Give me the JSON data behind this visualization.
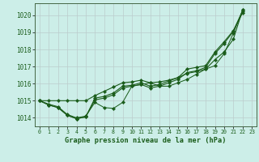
{
  "title": "Graphe pression niveau de la mer (hPa)",
  "background_color": "#cceee8",
  "grid_color": "#bbcccc",
  "line_color": "#1a5c1a",
  "xlim": [
    -0.5,
    23.5
  ],
  "ylim": [
    1013.5,
    1020.7
  ],
  "yticks": [
    1014,
    1015,
    1016,
    1017,
    1018,
    1019,
    1020
  ],
  "xticks": [
    0,
    1,
    2,
    3,
    4,
    5,
    6,
    7,
    8,
    9,
    10,
    11,
    12,
    13,
    14,
    15,
    16,
    17,
    18,
    19,
    20,
    21,
    22,
    23
  ],
  "series": [
    [
      1015.0,
      1014.8,
      1014.65,
      1014.2,
      1014.0,
      1014.1,
      1014.9,
      1014.6,
      1014.55,
      1014.9,
      1015.85,
      1015.95,
      1016.05,
      1015.85,
      1015.85,
      1016.05,
      1016.25,
      1016.55,
      1016.85,
      1017.05,
      1017.75,
      1018.95,
      1020.3
    ],
    [
      1015.0,
      1014.75,
      1014.6,
      1014.15,
      1013.95,
      1014.05,
      1015.15,
      1015.25,
      1015.45,
      1015.85,
      1015.9,
      1016.05,
      1015.85,
      1015.95,
      1016.15,
      1016.35,
      1016.85,
      1016.95,
      1017.05,
      1017.85,
      1018.45,
      1019.1,
      1020.25
    ],
    [
      1015.0,
      1014.75,
      1014.6,
      1014.15,
      1013.95,
      1014.05,
      1015.05,
      1015.15,
      1015.35,
      1015.75,
      1015.85,
      1015.95,
      1015.75,
      1015.85,
      1016.05,
      1016.25,
      1016.65,
      1016.75,
      1016.95,
      1017.75,
      1018.35,
      1019.05,
      1020.15
    ],
    [
      1015.0,
      1015.0,
      1015.0,
      1015.0,
      1015.0,
      1015.0,
      1015.3,
      1015.55,
      1015.8,
      1016.05,
      1016.1,
      1016.2,
      1016.05,
      1016.1,
      1016.2,
      1016.35,
      1016.6,
      1016.7,
      1016.85,
      1017.4,
      1017.85,
      1018.6,
      1020.3
    ]
  ],
  "marker": "D",
  "marker_size": 2.2,
  "line_width": 0.8
}
